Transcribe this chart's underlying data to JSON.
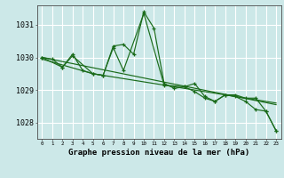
{
  "title": "Graphe pression niveau de la mer (hPa)",
  "bg_color": "#cce8e8",
  "plot_bg_color": "#cce8e8",
  "grid_color": "#ffffff",
  "line_color": "#1a6b1a",
  "border_color": "#4a4a4a",
  "text_color": "#000000",
  "xlim": [
    -0.5,
    23.5
  ],
  "ylim": [
    1027.5,
    1031.6
  ],
  "yticks": [
    1028,
    1029,
    1030,
    1031
  ],
  "xticks": [
    0,
    1,
    2,
    3,
    4,
    5,
    6,
    7,
    8,
    9,
    10,
    11,
    12,
    13,
    14,
    15,
    16,
    17,
    18,
    19,
    20,
    21,
    22,
    23
  ],
  "series": [
    {
      "x": [
        0,
        1,
        2,
        3,
        4,
        5,
        6,
        7,
        8,
        9,
        10,
        11,
        12,
        13,
        14,
        15,
        16,
        17,
        18,
        19,
        20,
        21,
        22,
        23
      ],
      "y": [
        1030.0,
        1029.95,
        1029.7,
        1030.1,
        1029.6,
        1029.5,
        1029.45,
        1030.35,
        1030.4,
        1030.1,
        1031.4,
        1030.9,
        1029.2,
        1029.05,
        1029.1,
        1028.95,
        1028.75,
        1028.65,
        1028.85,
        1028.8,
        1028.65,
        1028.4,
        1028.35,
        1027.75
      ],
      "has_markers": true
    },
    {
      "x": [
        0,
        23
      ],
      "y": [
        1030.0,
        1028.55
      ],
      "has_markers": false
    },
    {
      "x": [
        0,
        5,
        10,
        15,
        20,
        23
      ],
      "y": [
        1029.95,
        1029.5,
        1029.25,
        1029.0,
        1028.75,
        1028.6
      ],
      "has_markers": false
    },
    {
      "x": [
        0,
        2,
        3,
        5,
        6,
        7,
        8,
        10,
        12,
        14,
        15,
        16,
        17,
        18,
        19,
        20,
        21,
        22,
        23
      ],
      "y": [
        1030.0,
        1029.7,
        1030.05,
        1029.5,
        1029.45,
        1030.3,
        1029.6,
        1031.35,
        1029.15,
        1029.1,
        1029.2,
        1028.8,
        1028.65,
        1028.85,
        1028.85,
        1028.75,
        1028.75,
        1028.35,
        1027.75
      ],
      "has_markers": true
    }
  ]
}
